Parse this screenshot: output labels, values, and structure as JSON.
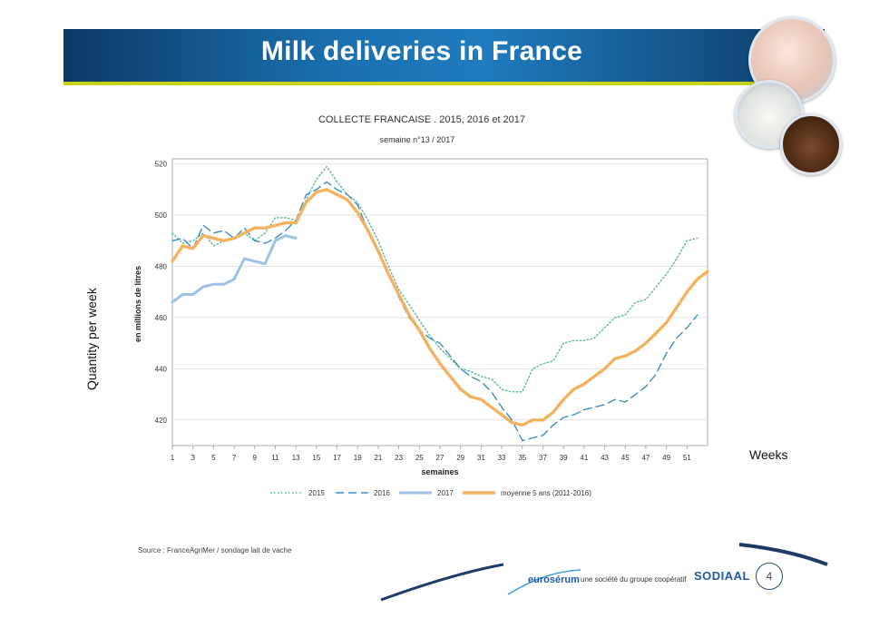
{
  "slide": {
    "title": "Milk deliveries in France",
    "side_label": "Quantity per week",
    "weeks_label": "Weeks",
    "source": "Source : FranceAgriMer / sondage lait de vache",
    "logo": "eurosérum",
    "tagline": "une société du groupe coopératif",
    "sodiaal": "SODIAAL",
    "page_number": "4",
    "colors": {
      "banner": "#1a6fae",
      "accent_line": "#c8d21a"
    }
  },
  "chart_data": {
    "type": "line",
    "title": "COLLECTE FRANCAISE . 2015, 2016 et 2017",
    "subtitle": "semaine n°13 / 2017",
    "xlabel": "semaines",
    "ylabel": "en millions de litres",
    "xlim": [
      1,
      53
    ],
    "ylim": [
      410,
      522
    ],
    "x_ticks": [
      1,
      3,
      5,
      7,
      9,
      11,
      13,
      15,
      17,
      19,
      21,
      23,
      25,
      27,
      29,
      31,
      33,
      35,
      37,
      39,
      41,
      43,
      45,
      47,
      49,
      51
    ],
    "y_ticks": [
      420,
      440,
      460,
      480,
      500,
      520
    ],
    "grid": "horizontal",
    "legend": "bottom",
    "series": [
      {
        "name": "2015",
        "style": "dotted",
        "color": "#5bb89a",
        "x": [
          1,
          2,
          3,
          4,
          5,
          6,
          7,
          8,
          9,
          10,
          11,
          12,
          13,
          14,
          15,
          16,
          17,
          18,
          19,
          20,
          21,
          22,
          23,
          24,
          25,
          26,
          27,
          28,
          29,
          30,
          31,
          32,
          33,
          34,
          35,
          36,
          37,
          38,
          39,
          40,
          41,
          42,
          43,
          44,
          45,
          46,
          47,
          48,
          49,
          50,
          51,
          52
        ],
        "values": [
          493,
          489,
          490,
          493,
          488,
          490,
          491,
          493,
          490,
          493,
          499,
          499,
          498,
          506,
          514,
          519,
          513,
          508,
          505,
          498,
          490,
          480,
          471,
          465,
          459,
          453,
          448,
          444,
          440,
          439,
          437,
          436,
          432,
          431,
          431,
          440,
          442,
          443,
          450,
          451,
          451,
          452,
          456,
          460,
          461,
          466,
          467,
          472,
          477,
          483,
          490,
          491
        ]
      },
      {
        "name": "2016",
        "style": "dashed",
        "color": "#3d8fc8",
        "x": [
          1,
          2,
          3,
          4,
          5,
          6,
          7,
          8,
          9,
          10,
          11,
          12,
          13,
          14,
          15,
          16,
          17,
          18,
          19,
          20,
          21,
          22,
          23,
          24,
          25,
          26,
          27,
          28,
          29,
          30,
          31,
          32,
          33,
          34,
          35,
          36,
          37,
          38,
          39,
          40,
          41,
          42,
          43,
          44,
          45,
          46,
          47,
          48,
          49,
          50,
          51,
          52
        ],
        "values": [
          490,
          491,
          487,
          496,
          493,
          494,
          491,
          495,
          490,
          489,
          491,
          494,
          498,
          508,
          510,
          513,
          510,
          508,
          504,
          494,
          486,
          477,
          468,
          460,
          455,
          452,
          450,
          445,
          440,
          437,
          435,
          431,
          425,
          420,
          412,
          413,
          414,
          418,
          421,
          422,
          424,
          425,
          426,
          428,
          427,
          430,
          433,
          438,
          446,
          452,
          456,
          461
        ]
      },
      {
        "name": "2017",
        "style": "solid",
        "color": "#9cc3e6",
        "x": [
          1,
          2,
          3,
          4,
          5,
          6,
          7,
          8,
          9,
          10,
          11,
          12,
          13
        ],
        "values": [
          466,
          469,
          469,
          472,
          473,
          473,
          475,
          483,
          482,
          481,
          490,
          492,
          491
        ]
      },
      {
        "name": "moyenne 5 ans (2011-2016)",
        "style": "solid-thick",
        "color": "#f4b25e",
        "x": [
          1,
          2,
          3,
          4,
          5,
          6,
          7,
          8,
          9,
          10,
          11,
          12,
          13,
          14,
          15,
          16,
          17,
          18,
          19,
          20,
          21,
          22,
          23,
          24,
          25,
          26,
          27,
          28,
          29,
          30,
          31,
          32,
          33,
          34,
          35,
          36,
          37,
          38,
          39,
          40,
          41,
          42,
          43,
          44,
          45,
          46,
          47,
          48,
          49,
          50,
          51,
          52,
          53
        ],
        "values": [
          482,
          488,
          487,
          492,
          491,
          490,
          491,
          493,
          495,
          495,
          496,
          497,
          497,
          505,
          509,
          510,
          508,
          506,
          501,
          494,
          486,
          477,
          469,
          461,
          455,
          448,
          442,
          437,
          432,
          429,
          428,
          425,
          422,
          419,
          418,
          420,
          420,
          423,
          428,
          432,
          434,
          437,
          440,
          444,
          445,
          447,
          450,
          454,
          458,
          464,
          470,
          475,
          478
        ]
      }
    ]
  }
}
